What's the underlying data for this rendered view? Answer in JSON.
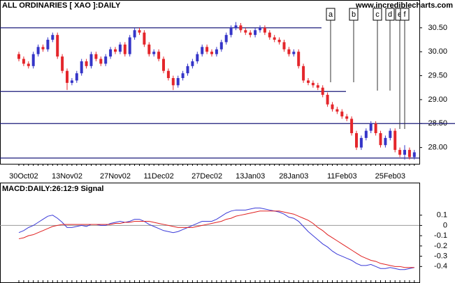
{
  "chart_data": [
    {
      "type": "candlestick",
      "title": "ALL ORDINARIES [ XAO ]:DAILY",
      "watermark": "www.incrediblecharts.com",
      "x": [
        null,
        "30Oct02",
        null,
        null,
        null,
        null,
        null,
        null,
        null,
        null,
        "13Nov02",
        null,
        null,
        null,
        null,
        null,
        null,
        null,
        null,
        null,
        "27Nov02",
        null,
        null,
        null,
        null,
        null,
        null,
        null,
        null,
        "11Dec02",
        null,
        null,
        null,
        null,
        null,
        null,
        null,
        null,
        null,
        "27Dec02",
        null,
        null,
        null,
        null,
        null,
        null,
        null,
        null,
        "13Jan03",
        null,
        null,
        null,
        null,
        null,
        null,
        null,
        null,
        "28Jan03",
        null,
        null,
        null,
        null,
        null,
        null,
        null,
        null,
        null,
        "11Feb03",
        null,
        null,
        null,
        null,
        null,
        null,
        null,
        null,
        null,
        "25Feb03",
        null,
        null,
        null,
        null,
        null
      ],
      "open": [
        29.95,
        29.85,
        29.75,
        29.7,
        29.95,
        30.1,
        30.05,
        30.25,
        30.35,
        29.9,
        29.6,
        29.35,
        29.4,
        29.55,
        29.8,
        29.7,
        29.95,
        29.85,
        29.75,
        29.9,
        30.05,
        30.0,
        30.15,
        29.95,
        30.3,
        30.45,
        30.4,
        30.15,
        29.95,
        30.0,
        29.85,
        29.6,
        29.45,
        29.3,
        29.45,
        29.55,
        29.7,
        29.8,
        29.95,
        30.1,
        30.0,
        29.95,
        30.05,
        30.2,
        30.35,
        30.5,
        30.55,
        30.45,
        30.4,
        30.35,
        30.45,
        30.5,
        30.4,
        30.3,
        30.25,
        30.2,
        30.05,
        29.95,
        30.0,
        29.7,
        29.4,
        29.35,
        29.3,
        29.25,
        29.1,
        28.9,
        28.8,
        28.75,
        28.65,
        28.6,
        28.3,
        28.0,
        28.2,
        28.35,
        28.5,
        28.3,
        28.05,
        28.2,
        28.35,
        27.95,
        27.85,
        27.95,
        27.8
      ],
      "high": [
        30.0,
        29.9,
        29.8,
        30.0,
        30.15,
        30.15,
        30.3,
        30.4,
        30.4,
        29.95,
        29.65,
        29.45,
        29.6,
        29.85,
        29.85,
        30.0,
        30.0,
        29.9,
        29.95,
        30.1,
        30.1,
        30.2,
        30.2,
        30.35,
        30.5,
        30.5,
        30.45,
        30.2,
        30.05,
        30.05,
        29.9,
        29.65,
        29.5,
        29.5,
        29.6,
        29.75,
        29.85,
        30.0,
        30.15,
        30.15,
        30.05,
        30.1,
        30.25,
        30.4,
        30.55,
        30.62,
        30.6,
        30.5,
        30.45,
        30.5,
        30.55,
        30.55,
        30.45,
        30.35,
        30.3,
        30.25,
        30.1,
        30.05,
        30.05,
        29.75,
        29.45,
        29.4,
        29.35,
        29.3,
        29.15,
        28.95,
        28.85,
        28.8,
        28.7,
        28.65,
        28.35,
        28.25,
        28.4,
        28.55,
        28.55,
        28.35,
        28.25,
        28.4,
        28.4,
        28.0,
        28.05,
        28.0,
        27.95
      ],
      "low": [
        29.8,
        29.7,
        29.65,
        29.65,
        29.9,
        30.0,
        30.0,
        30.2,
        29.85,
        29.55,
        29.2,
        29.3,
        29.35,
        29.5,
        29.65,
        29.65,
        29.8,
        29.7,
        29.7,
        29.85,
        29.95,
        29.95,
        29.9,
        29.9,
        30.25,
        30.35,
        30.1,
        29.9,
        29.9,
        29.8,
        29.55,
        29.4,
        29.2,
        29.25,
        29.4,
        29.5,
        29.65,
        29.75,
        29.9,
        29.95,
        29.9,
        29.9,
        30.0,
        30.15,
        30.3,
        30.45,
        30.4,
        30.35,
        30.3,
        30.3,
        30.4,
        30.35,
        30.25,
        30.2,
        30.15,
        30.0,
        29.9,
        29.9,
        29.65,
        29.35,
        29.3,
        29.25,
        29.2,
        29.05,
        28.85,
        28.75,
        28.7,
        28.6,
        28.55,
        28.25,
        27.95,
        27.95,
        28.15,
        28.3,
        28.25,
        28.0,
        28.0,
        28.15,
        27.9,
        27.8,
        27.75,
        27.75,
        27.75
      ],
      "close": [
        29.85,
        29.75,
        29.7,
        29.95,
        30.1,
        30.05,
        30.25,
        30.35,
        29.9,
        29.6,
        29.35,
        29.4,
        29.55,
        29.8,
        29.7,
        29.95,
        29.85,
        29.75,
        29.9,
        30.05,
        30.0,
        30.15,
        29.95,
        30.3,
        30.45,
        30.4,
        30.15,
        29.95,
        30.0,
        29.85,
        29.6,
        29.45,
        29.3,
        29.45,
        29.55,
        29.7,
        29.8,
        29.95,
        30.1,
        30.0,
        29.95,
        30.05,
        30.2,
        30.35,
        30.5,
        30.55,
        30.45,
        30.4,
        30.35,
        30.45,
        30.5,
        30.4,
        30.3,
        30.25,
        30.2,
        30.05,
        29.95,
        30.0,
        29.7,
        29.4,
        29.35,
        29.3,
        29.25,
        29.1,
        28.9,
        28.8,
        28.75,
        28.65,
        28.6,
        28.3,
        28.0,
        28.2,
        28.35,
        28.5,
        28.3,
        28.05,
        28.2,
        28.35,
        27.95,
        27.85,
        27.95,
        27.8,
        27.9
      ],
      "up_color": "#3535c8",
      "down_color": "#e4262b",
      "ylim": [
        27.66,
        31.08
      ],
      "yticks": [
        {
          "value": 28,
          "label": "28.00"
        },
        {
          "value": 28.5,
          "label": "28.50"
        },
        {
          "value": 29,
          "label": "29.00"
        },
        {
          "value": 29.5,
          "label": "29.50"
        },
        {
          "value": 30,
          "label": "30.00"
        },
        {
          "value": 30.5,
          "label": "30.50"
        }
      ],
      "levels": [
        30.5,
        29.17,
        28.5,
        27.78
      ],
      "annotations": [
        "a",
        "b",
        "c",
        "d",
        "e",
        "f"
      ]
    },
    {
      "type": "line",
      "title": "MACD:DAILY:26:12:9 Signal",
      "series": [
        {
          "color": "#3a3ad8",
          "values": [
            -0.07,
            -0.05,
            -0.02,
            0.0,
            0.03,
            0.06,
            0.09,
            0.1,
            0.07,
            0.03,
            -0.02,
            -0.02,
            -0.01,
            0.0,
            -0.01,
            0.01,
            0.01,
            0.0,
            0.0,
            0.02,
            0.03,
            0.04,
            0.03,
            0.04,
            0.06,
            0.06,
            0.04,
            0.01,
            -0.01,
            -0.03,
            -0.05,
            -0.06,
            -0.07,
            -0.06,
            -0.04,
            -0.02,
            0.0,
            0.02,
            0.04,
            0.04,
            0.04,
            0.06,
            0.09,
            0.12,
            0.14,
            0.15,
            0.15,
            0.15,
            0.16,
            0.17,
            0.17,
            0.16,
            0.15,
            0.14,
            0.13,
            0.11,
            0.08,
            0.07,
            0.04,
            -0.01,
            -0.06,
            -0.1,
            -0.14,
            -0.18,
            -0.21,
            -0.25,
            -0.28,
            -0.3,
            -0.32,
            -0.34,
            -0.37,
            -0.39,
            -0.39,
            -0.38,
            -0.4,
            -0.42,
            -0.42,
            -0.41,
            -0.42,
            -0.43,
            -0.43,
            -0.42,
            -0.41
          ]
        },
        {
          "color": "#e02020",
          "values": [
            -0.13,
            -0.12,
            -0.1,
            -0.09,
            -0.07,
            -0.05,
            -0.03,
            -0.01,
            0.0,
            0.01,
            0.01,
            0.01,
            0.01,
            0.01,
            0.01,
            0.01,
            0.01,
            0.01,
            0.01,
            0.01,
            0.02,
            0.02,
            0.03,
            0.03,
            0.04,
            0.04,
            0.04,
            0.04,
            0.03,
            0.02,
            0.01,
            0.0,
            -0.01,
            -0.02,
            -0.02,
            -0.02,
            -0.02,
            -0.01,
            0.0,
            0.01,
            0.02,
            0.03,
            0.04,
            0.06,
            0.07,
            0.09,
            0.1,
            0.11,
            0.12,
            0.13,
            0.14,
            0.14,
            0.14,
            0.14,
            0.14,
            0.13,
            0.12,
            0.11,
            0.09,
            0.07,
            0.05,
            0.02,
            -0.02,
            -0.05,
            -0.09,
            -0.12,
            -0.15,
            -0.18,
            -0.21,
            -0.24,
            -0.27,
            -0.3,
            -0.32,
            -0.34,
            -0.35,
            -0.37,
            -0.38,
            -0.39,
            -0.4,
            -0.4,
            -0.41,
            -0.41,
            -0.41
          ]
        }
      ],
      "ylim": [
        -0.554,
        0.417
      ],
      "yticks": [
        0.1,
        0,
        -0.1,
        -0.2,
        -0.3,
        -0.4
      ]
    }
  ]
}
